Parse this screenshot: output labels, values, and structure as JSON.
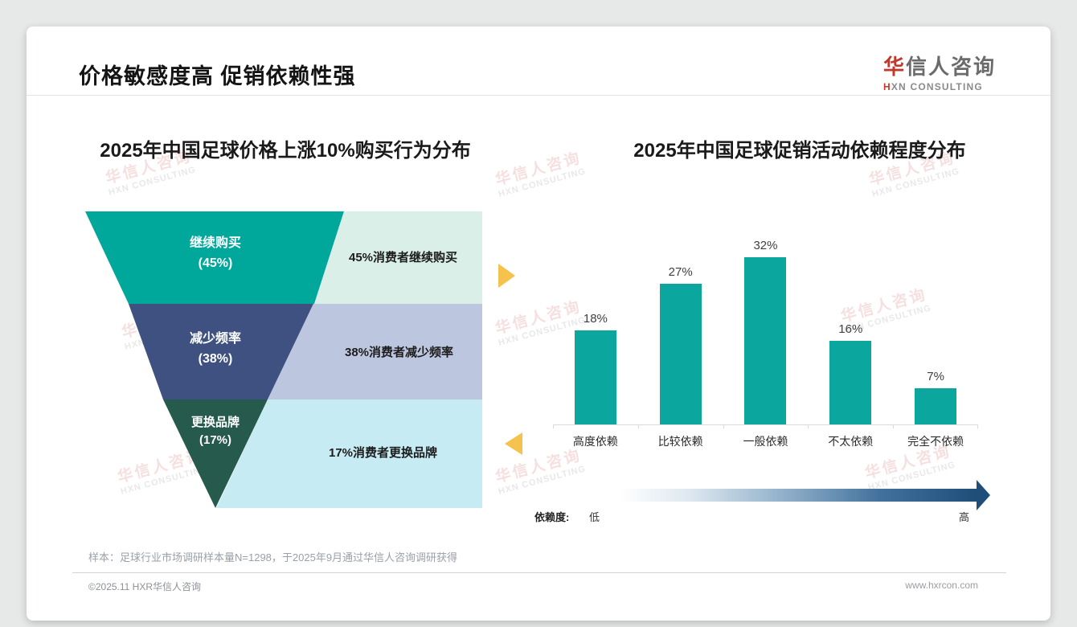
{
  "page": {
    "title": "价格敏感度高 促销依赖性强",
    "logo": {
      "zh_accent": "华",
      "zh_rest": "信人咨询",
      "en_accent": "H",
      "en_rest": "XN CONSULTING"
    },
    "watermark": {
      "zh": "华信人咨询",
      "en": "HXN CONSULTING"
    },
    "footnote": "样本：足球行业市场调研样本量N=1298，于2025年9月通过华信人咨询调研获得",
    "footer_left": "©2025.11 HXR华信人咨询",
    "footer_right": "www.hxrcon.com"
  },
  "colors": {
    "accent_red": "#c0392b",
    "connector_yellow": "#f5c24d",
    "arrow_dark_blue": "#1f4e79"
  },
  "chart_data": [
    {
      "type": "funnel",
      "title": "2025年中国足球价格上涨10%购买行为分布",
      "levels": [
        {
          "label": "继续购买",
          "pct": "(45%)",
          "value": 45,
          "note": "45%消费者继续购买",
          "color": "#00a79b",
          "note_bg": "#d9efe8"
        },
        {
          "label": "减少频率",
          "pct": "(38%)",
          "value": 38,
          "note": "38%消费者减少频率",
          "color": "#3e5180",
          "note_bg": "#bcc6df"
        },
        {
          "label": "更换品牌",
          "pct": "(17%)",
          "value": 17,
          "note": "17%消费者更换品牌",
          "color": "#265a4c",
          "note_bg": "#c6ebf3"
        }
      ]
    },
    {
      "type": "bar",
      "title": "2025年中国足球促销活动依赖程度分布",
      "categories": [
        "高度依赖",
        "比较依赖",
        "一般依赖",
        "不太依赖",
        "完全不依赖"
      ],
      "values": [
        18,
        27,
        32,
        16,
        7
      ],
      "value_labels": [
        "18%",
        "27%",
        "32%",
        "16%",
        "7%"
      ],
      "bar_color": "#0ba79e",
      "ylim": [
        0,
        35
      ],
      "grid": false,
      "axis_legend": {
        "label": "依赖度:",
        "low": "低",
        "high": "高"
      }
    }
  ]
}
